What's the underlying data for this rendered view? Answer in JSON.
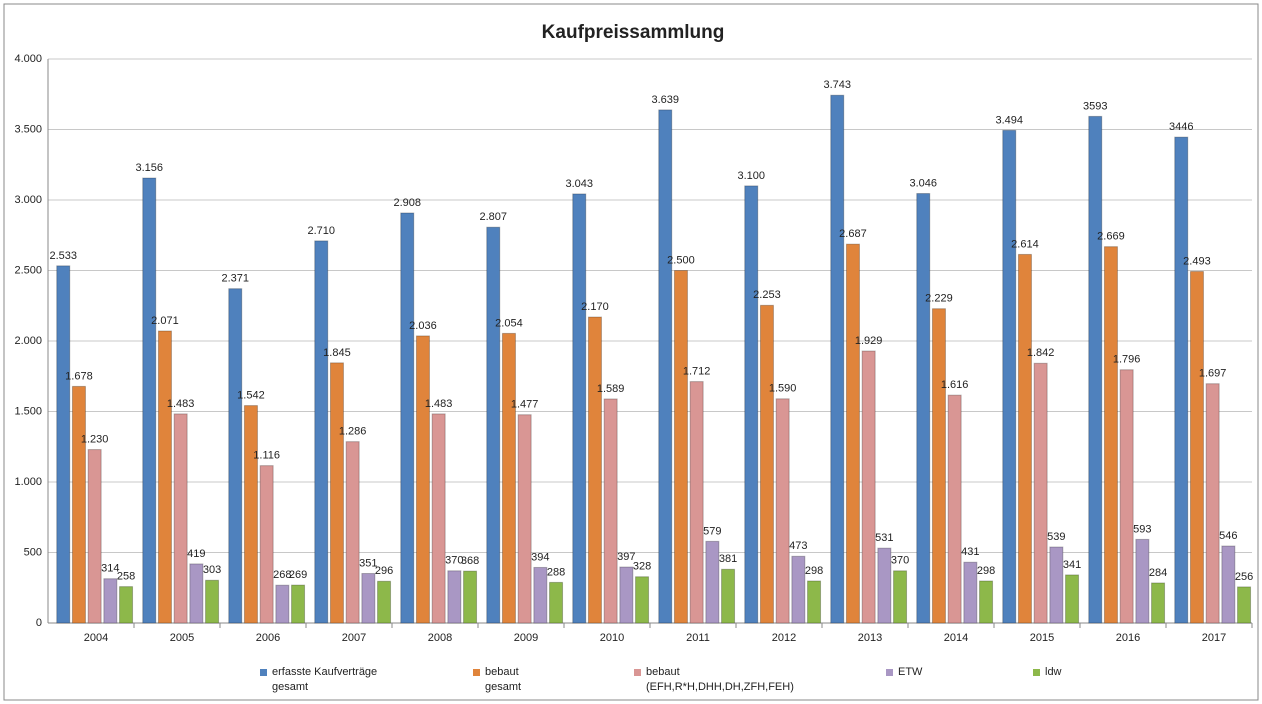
{
  "chart_data": {
    "type": "bar",
    "title": "Kaufpreissammlung",
    "categories": [
      "2004",
      "2005",
      "2006",
      "2007",
      "2008",
      "2009",
      "2010",
      "2011",
      "2012",
      "2013",
      "2014",
      "2015",
      "2016",
      "2017"
    ],
    "series": [
      {
        "name": "erfasste Kaufverträge gesamt",
        "color": "#4f81bd",
        "values": [
          2533,
          3156,
          2371,
          2710,
          2908,
          2807,
          3043,
          3639,
          3100,
          3743,
          3046,
          3494,
          3593,
          3446
        ],
        "value_labels": [
          "2.533",
          "3.156",
          "2.371",
          "2.710",
          "2.908",
          "2.807",
          "3.043",
          "3.639",
          "3.100",
          "3.743",
          "3.046",
          "3.494",
          "3593",
          "3446"
        ]
      },
      {
        "name": "bebaut gesamt",
        "color": "#e0843b",
        "values": [
          1678,
          2071,
          1542,
          1845,
          2036,
          2054,
          2170,
          2500,
          2253,
          2687,
          2229,
          2614,
          2669,
          2493
        ],
        "value_labels": [
          "1.678",
          "2.071",
          "1.542",
          "1.845",
          "2.036",
          "2.054",
          "2.170",
          "2.500",
          "2.253",
          "2.687",
          "2.229",
          "2.614",
          "2.669",
          "2.493"
        ]
      },
      {
        "name": "bebaut (EFH,R*H,DHH,DH,ZFH,FEH)",
        "color": "#d99694",
        "values": [
          1230,
          1483,
          1116,
          1286,
          1483,
          1477,
          1589,
          1712,
          1590,
          1929,
          1616,
          1842,
          1796,
          1697
        ],
        "value_labels": [
          "1.230",
          "1.483",
          "1.116",
          "1.286",
          "1.483",
          "1.477",
          "1.589",
          "1.712",
          "1.590",
          "1.929",
          "1.616",
          "1.842",
          "1.796",
          "1.697"
        ]
      },
      {
        "name": "ETW",
        "color": "#a997c4",
        "values": [
          314,
          419,
          268,
          351,
          370,
          394,
          397,
          579,
          473,
          531,
          431,
          539,
          593,
          546
        ]
      },
      {
        "name": "ldw",
        "color": "#8db84a",
        "values": [
          258,
          303,
          269,
          296,
          368,
          288,
          328,
          381,
          298,
          370,
          298,
          341,
          284,
          256
        ]
      }
    ],
    "ylim": [
      0,
      4000
    ],
    "yticks": [
      0,
      500,
      {
        "value": 1000,
        "label": "1.000"
      },
      {
        "value": 1500,
        "label": "1.500"
      },
      {
        "value": 2000,
        "label": "2.000"
      },
      {
        "value": 2500,
        "label": "2.500"
      },
      {
        "value": 3000,
        "label": "3.000"
      },
      {
        "value": 3500,
        "label": "3.500"
      },
      {
        "value": 4000,
        "label": "4.000"
      }
    ],
    "grid": true,
    "legend": "bottom"
  }
}
